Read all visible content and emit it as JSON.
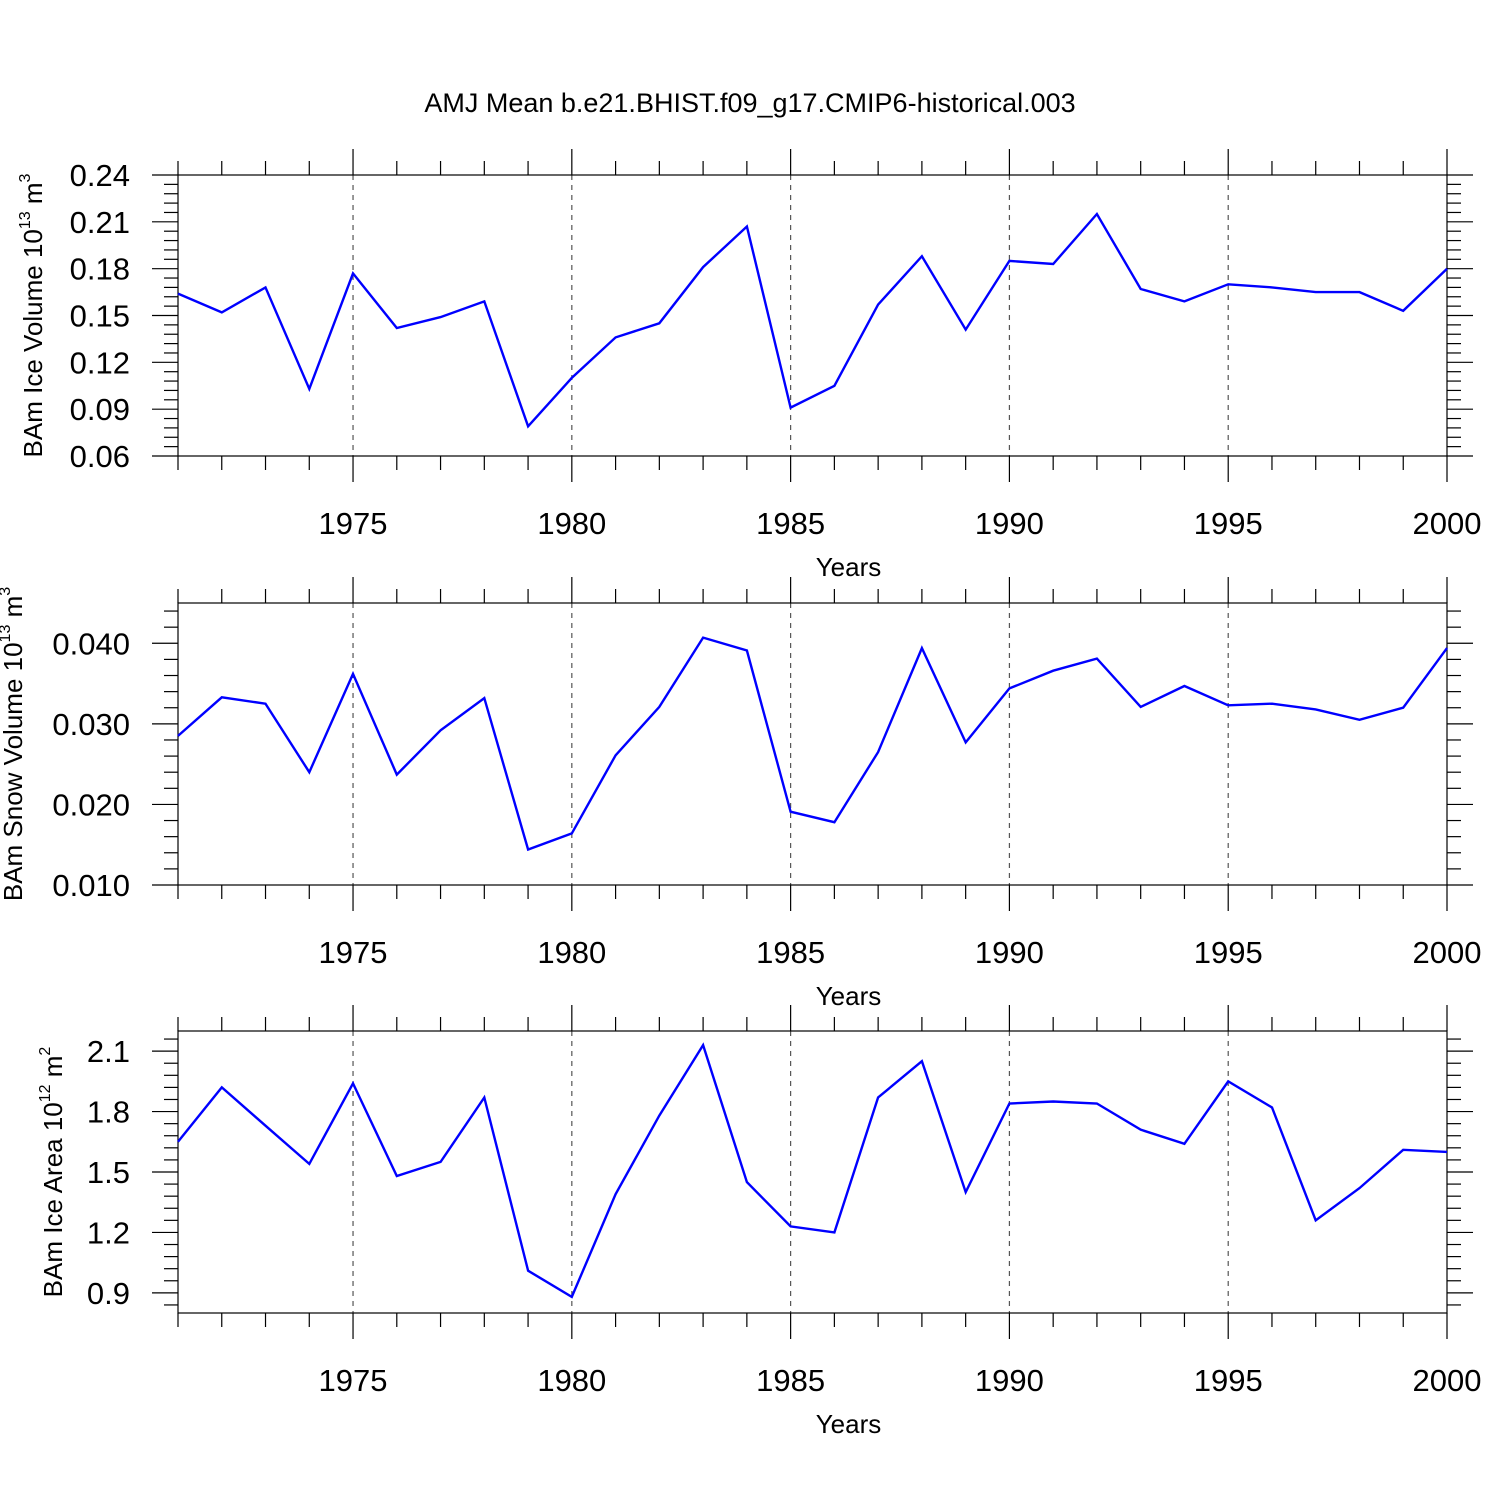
{
  "title": "AMJ Mean b.e21.BHIST.f09_g17.CMIP6-historical.003",
  "colors": {
    "line": "#0000ff",
    "axis": "#000000",
    "grid": "#555555"
  },
  "chart_data": [
    {
      "type": "line",
      "ylabel": {
        "text": "BAm Ice Volume 10",
        "sup": "13",
        "unit": " m",
        "unit_sup": "3"
      },
      "xlabel": "Years",
      "xlim": [
        1971,
        2000
      ],
      "ylim": [
        0.06,
        0.24
      ],
      "xticks": [
        "1975",
        "1980",
        "1985",
        "1990",
        "1995",
        "2000"
      ],
      "yticks": [
        "0.06",
        "0.09",
        "0.12",
        "0.15",
        "0.18",
        "0.21",
        "0.24"
      ],
      "x": [
        1971,
        1972,
        1973,
        1974,
        1975,
        1976,
        1977,
        1978,
        1979,
        1980,
        1981,
        1982,
        1983,
        1984,
        1985,
        1986,
        1987,
        1988,
        1989,
        1990,
        1991,
        1992,
        1993,
        1994,
        1995,
        1996,
        1997,
        1998,
        1999,
        2000
      ],
      "values": [
        0.164,
        0.152,
        0.168,
        0.103,
        0.177,
        0.142,
        0.149,
        0.159,
        0.079,
        0.11,
        0.136,
        0.145,
        0.181,
        0.207,
        0.091,
        0.105,
        0.157,
        0.188,
        0.141,
        0.185,
        0.183,
        0.215,
        0.167,
        0.159,
        0.17,
        0.168,
        0.165,
        0.165,
        0.153,
        0.18
      ]
    },
    {
      "type": "line",
      "ylabel": {
        "text": "BAm Snow Volume 10",
        "sup": "13",
        "unit": " m",
        "unit_sup": "3"
      },
      "xlabel": "Years",
      "xlim": [
        1971,
        2000
      ],
      "ylim": [
        0.01,
        0.045
      ],
      "xticks": [
        "1975",
        "1980",
        "1985",
        "1990",
        "1995",
        "2000"
      ],
      "yticks": [
        "0.010",
        "0.020",
        "0.030",
        "0.040"
      ],
      "x": [
        1971,
        1972,
        1973,
        1974,
        1975,
        1976,
        1977,
        1978,
        1979,
        1980,
        1981,
        1982,
        1983,
        1984,
        1985,
        1986,
        1987,
        1988,
        1989,
        1990,
        1991,
        1992,
        1993,
        1994,
        1995,
        1996,
        1997,
        1998,
        1999,
        2000
      ],
      "values": [
        0.0285,
        0.0333,
        0.0325,
        0.024,
        0.0362,
        0.0237,
        0.0292,
        0.0332,
        0.0144,
        0.0164,
        0.0261,
        0.0321,
        0.0407,
        0.0391,
        0.0191,
        0.0178,
        0.0265,
        0.0394,
        0.0277,
        0.0344,
        0.0366,
        0.0381,
        0.0321,
        0.0347,
        0.0323,
        0.0325,
        0.0318,
        0.0305,
        0.032,
        0.0394
      ]
    },
    {
      "type": "line",
      "ylabel": {
        "text": "BAm Ice Area 10",
        "sup": "12",
        "unit": " m",
        "unit_sup": "2"
      },
      "xlabel": "Years",
      "xlim": [
        1971,
        2000
      ],
      "ylim": [
        0.8,
        2.2
      ],
      "xticks": [
        "1975",
        "1980",
        "1985",
        "1990",
        "1995",
        "2000"
      ],
      "yticks": [
        "0.9",
        "1.2",
        "1.5",
        "1.8",
        "2.1"
      ],
      "x": [
        1971,
        1972,
        1973,
        1974,
        1975,
        1976,
        1977,
        1978,
        1979,
        1980,
        1981,
        1982,
        1983,
        1984,
        1985,
        1986,
        1987,
        1988,
        1989,
        1990,
        1991,
        1992,
        1993,
        1994,
        1995,
        1996,
        1997,
        1998,
        1999,
        2000
      ],
      "values": [
        1.65,
        1.92,
        1.73,
        1.54,
        1.94,
        1.48,
        1.55,
        1.87,
        1.01,
        0.88,
        1.39,
        1.78,
        2.13,
        1.45,
        1.23,
        1.2,
        1.87,
        2.05,
        1.4,
        1.84,
        1.85,
        1.84,
        1.71,
        1.64,
        1.95,
        1.82,
        1.26,
        1.42,
        1.61,
        1.6
      ]
    }
  ]
}
